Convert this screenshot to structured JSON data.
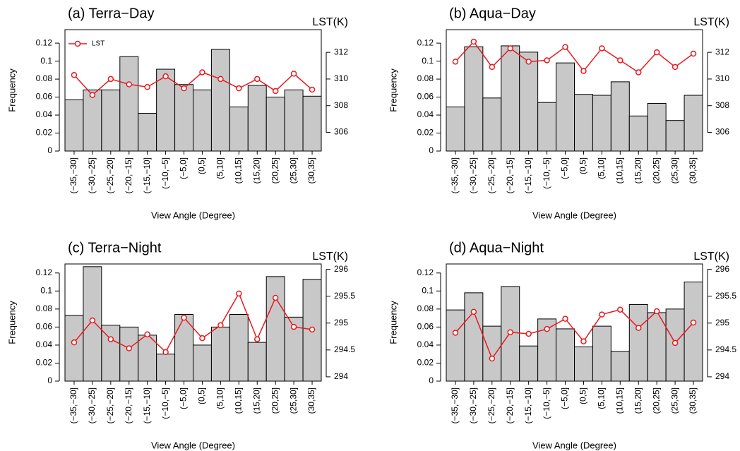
{
  "chart_data": [
    {
      "type": "bar",
      "title": "(a) Terra−Day",
      "xlabel": "View Angle (Degree)",
      "ylabel": "Frequency",
      "y2label": "LST(K)",
      "categories": [
        "(−35,−30]",
        "(−30,−25]",
        "(−25,−20]",
        "(−20,−15]",
        "(−15,−10]",
        "(−10,−5]",
        "(−5,0]",
        "(0,5]",
        "(5,10]",
        "(10,15]",
        "(15,20]",
        "(20,25]",
        "(25,30]",
        "(30,35]"
      ],
      "values": [
        0.057,
        0.068,
        0.068,
        0.105,
        0.042,
        0.091,
        0.074,
        0.068,
        0.113,
        0.049,
        0.073,
        0.06,
        0.068,
        0.061
      ],
      "color": "#c8c8c8",
      "series": [
        {
          "name": "LST",
          "color": "#e8191e",
          "axis": "y2",
          "values": [
            310.3,
            308.8,
            310.0,
            309.6,
            309.4,
            310.2,
            309.3,
            310.5,
            310.0,
            309.3,
            310.0,
            309.1,
            310.4,
            309.2
          ]
        }
      ],
      "ylim": [
        0,
        0.135
      ],
      "yticks": [
        0,
        0.02,
        0.04,
        0.06,
        0.08,
        0.1,
        0.12
      ],
      "y2lim": [
        304.6,
        313.7
      ],
      "y2ticks": [
        306,
        308,
        310,
        312
      ],
      "legend": "top left"
    },
    {
      "type": "bar",
      "title": "(b) Aqua−Day",
      "xlabel": "View Angle (Degree)",
      "ylabel": "Frequency",
      "y2label": "LST(K)",
      "categories": [
        "(−35,−30]",
        "(−30,−25]",
        "(−25,−20]",
        "(−20,−15]",
        "(−15,−10]",
        "(−10,−5]",
        "(−5,0]",
        "(0,5]",
        "(5,10]",
        "(10,15]",
        "(15,20]",
        "(20,25]",
        "(25,30]",
        "(30,35]"
      ],
      "values": [
        0.049,
        0.116,
        0.059,
        0.117,
        0.11,
        0.054,
        0.098,
        0.063,
        0.062,
        0.077,
        0.039,
        0.053,
        0.034,
        0.062
      ],
      "color": "#c8c8c8",
      "series": [
        {
          "color": "#e8191e",
          "axis": "y2",
          "values": [
            311.3,
            312.8,
            310.9,
            312.3,
            311.3,
            311.4,
            312.4,
            310.6,
            312.3,
            311.4,
            310.5,
            312.0,
            310.9,
            311.9
          ]
        }
      ],
      "ylim": [
        0,
        0.135
      ],
      "yticks": [
        0,
        0.02,
        0.04,
        0.06,
        0.08,
        0.1,
        0.12
      ],
      "y2lim": [
        304.6,
        313.7
      ],
      "y2ticks": [
        306,
        308,
        310,
        312
      ]
    },
    {
      "type": "bar",
      "title": "(c) Terra−Night",
      "xlabel": "View Angle (Degree)",
      "ylabel": "Frequency",
      "y2label": "LST(K)",
      "categories": [
        "(−35,−30]",
        "(−30,−25]",
        "(−25,−20]",
        "(−20,−15]",
        "(−15,−10]",
        "(−10,−5]",
        "(−5,0]",
        "(0,5]",
        "(5,10]",
        "(10,15]",
        "(15,20]",
        "(20,25]",
        "(25,30]",
        "(30,35]"
      ],
      "values": [
        0.073,
        0.127,
        0.062,
        0.06,
        0.051,
        0.03,
        0.074,
        0.04,
        0.06,
        0.074,
        0.043,
        0.116,
        0.071,
        0.113
      ],
      "color": "#c8c8c8",
      "series": [
        {
          "color": "#e8191e",
          "axis": "y2",
          "values": [
            294.64,
            295.05,
            294.7,
            294.53,
            294.79,
            294.46,
            295.1,
            294.72,
            294.96,
            295.55,
            294.7,
            295.47,
            294.93,
            294.88
          ]
        }
      ],
      "ylim": [
        0,
        0.13
      ],
      "yticks": [
        0,
        0.02,
        0.04,
        0.06,
        0.08,
        0.1,
        0.12
      ],
      "y2lim": [
        293.92,
        296.1
      ],
      "y2ticks": [
        294,
        294.5,
        295,
        295.5,
        296
      ]
    },
    {
      "type": "bar",
      "title": "(d) Aqua−Night",
      "xlabel": "View Angle (Degree)",
      "ylabel": "Frequency",
      "y2label": "LST(K)",
      "categories": [
        "(−35,−30]",
        "(−30,−25]",
        "(−25,−20]",
        "(−20,−15]",
        "(−15,−10]",
        "(−10,−5]",
        "(−5,0]",
        "(0,5]",
        "(5,10]",
        "(10,15]",
        "(15,20]",
        "(20,25]",
        "(25,30]",
        "(30,35]"
      ],
      "values": [
        0.079,
        0.098,
        0.061,
        0.105,
        0.039,
        0.069,
        0.058,
        0.038,
        0.061,
        0.033,
        0.085,
        0.076,
        0.08,
        0.11
      ],
      "color": "#c8c8c8",
      "series": [
        {
          "color": "#e8191e",
          "axis": "y2",
          "values": [
            294.82,
            295.21,
            294.34,
            294.83,
            294.8,
            294.89,
            295.08,
            294.66,
            295.16,
            295.25,
            294.91,
            295.22,
            294.63,
            295.01
          ]
        }
      ],
      "ylim": [
        0,
        0.13
      ],
      "yticks": [
        0,
        0.02,
        0.04,
        0.06,
        0.08,
        0.1,
        0.12
      ],
      "y2lim": [
        293.92,
        296.1
      ],
      "y2ticks": [
        294,
        294.5,
        295,
        295.5,
        296
      ]
    }
  ]
}
